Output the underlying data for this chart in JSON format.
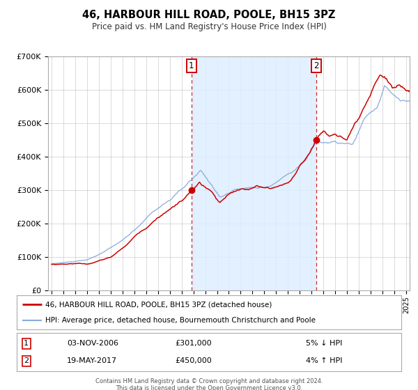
{
  "title": "46, HARBOUR HILL ROAD, POOLE, BH15 3PZ",
  "subtitle": "Price paid vs. HM Land Registry's House Price Index (HPI)",
  "legend_line1": "46, HARBOUR HILL ROAD, POOLE, BH15 3PZ (detached house)",
  "legend_line2": "HPI: Average price, detached house, Bournemouth Christchurch and Poole",
  "transaction1_date": "03-NOV-2006",
  "transaction1_price": "£301,000",
  "transaction1_hpi": "5% ↓ HPI",
  "transaction2_date": "19-MAY-2017",
  "transaction2_price": "£450,000",
  "transaction2_hpi": "4% ↑ HPI",
  "footer1": "Contains HM Land Registry data © Crown copyright and database right 2024.",
  "footer2": "This data is licensed under the Open Government Licence v3.0.",
  "price_color": "#cc0000",
  "hpi_color": "#88aadd",
  "background_color": "#ffffff",
  "plot_bg_color": "#ffffff",
  "shade_color": "#ddeeff",
  "transaction1_x": 2006.84,
  "transaction2_x": 2017.38,
  "transaction1_y": 301000,
  "transaction2_y": 450000,
  "ylim": [
    0,
    700000
  ],
  "xlim": [
    1994.7,
    2025.3
  ],
  "yticks": [
    0,
    100000,
    200000,
    300000,
    400000,
    500000,
    600000,
    700000
  ],
  "xticks": [
    1995,
    1996,
    1997,
    1998,
    1999,
    2000,
    2001,
    2002,
    2003,
    2004,
    2005,
    2006,
    2007,
    2008,
    2009,
    2010,
    2011,
    2012,
    2013,
    2014,
    2015,
    2016,
    2017,
    2018,
    2019,
    2020,
    2021,
    2022,
    2023,
    2024,
    2025
  ]
}
